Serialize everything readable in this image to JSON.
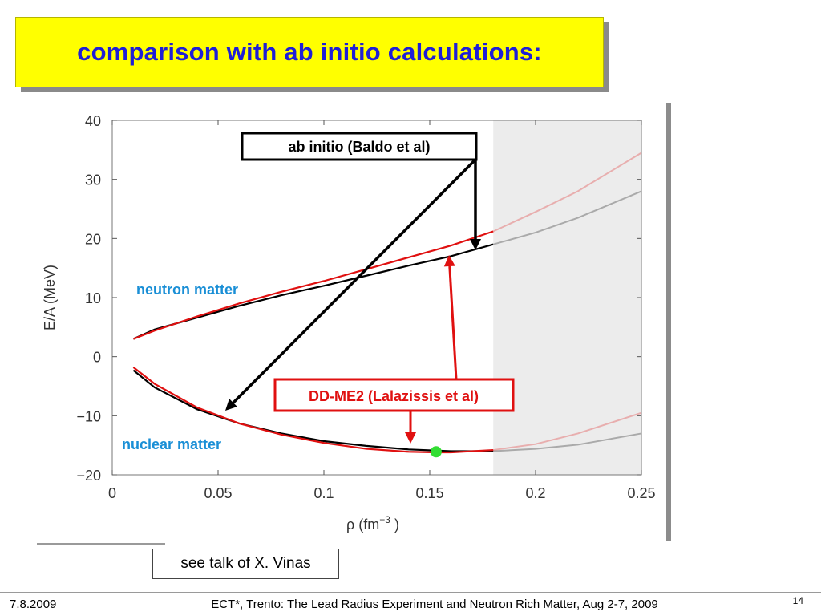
{
  "slide": {
    "title": "comparison with ab initio calculations:",
    "talk_note": "see talk of X. Vinas",
    "footer_date": "7.8.2009",
    "footer_text": "ECT*, Trento: The Lead Radius Experiment and Neutron Rich Matter, Aug 2-7, 2009",
    "page_number": "14"
  },
  "chart_data": {
    "type": "line",
    "xlabel_base": "ρ (fm",
    "xlabel_exp": "−3",
    "xlabel_close": " )",
    "ylabel": "E/A (MeV)",
    "xlim": [
      0,
      0.25
    ],
    "ylim": [
      -20,
      40
    ],
    "x_ticks": [
      0,
      0.05,
      0.1,
      0.15,
      0.2,
      0.25
    ],
    "x_tick_labels": [
      "0",
      "0.05",
      "0.1",
      "0.15",
      "0.2",
      "0.25"
    ],
    "y_ticks": [
      -20,
      -10,
      0,
      10,
      20,
      30,
      40
    ],
    "y_tick_labels": [
      "−20",
      "−10",
      "0",
      "10",
      "20",
      "30",
      "40"
    ],
    "shaded_region_x": [
      0.18,
      0.25
    ],
    "fade_after_x": 0.18,
    "colors": {
      "ab_initio": "#000000",
      "ddme2": "#e01010",
      "dot": "#33dd33",
      "shade": "#ececec",
      "label_blue": "#1a8fd6"
    },
    "series": [
      {
        "key": "ab_initio_neutron",
        "x": [
          0.01,
          0.02,
          0.04,
          0.06,
          0.08,
          0.1,
          0.12,
          0.14,
          0.16,
          0.18,
          0.2,
          0.22,
          0.25
        ],
        "y": [
          3.0,
          4.6,
          6.6,
          8.6,
          10.4,
          12.0,
          13.7,
          15.4,
          17.0,
          19.0,
          21.0,
          23.5,
          28.0
        ]
      },
      {
        "key": "ddme2_neutron",
        "x": [
          0.01,
          0.02,
          0.04,
          0.06,
          0.08,
          0.1,
          0.12,
          0.14,
          0.16,
          0.18,
          0.2,
          0.22,
          0.25
        ],
        "y": [
          3.0,
          4.4,
          6.8,
          9.0,
          11.0,
          12.8,
          14.8,
          16.8,
          18.8,
          21.2,
          24.5,
          28.0,
          34.5
        ]
      },
      {
        "key": "ab_initio_nuclear",
        "x": [
          0.01,
          0.02,
          0.04,
          0.06,
          0.08,
          0.1,
          0.12,
          0.14,
          0.16,
          0.18,
          0.2,
          0.22,
          0.25
        ],
        "y": [
          -2.3,
          -5.2,
          -8.9,
          -11.3,
          -13.0,
          -14.3,
          -15.1,
          -15.7,
          -16.0,
          -16.0,
          -15.6,
          -14.9,
          -13.0
        ]
      },
      {
        "key": "ddme2_nuclear",
        "x": [
          0.01,
          0.02,
          0.04,
          0.06,
          0.08,
          0.1,
          0.12,
          0.14,
          0.153,
          0.16,
          0.18,
          0.2,
          0.22,
          0.25
        ],
        "y": [
          -1.8,
          -4.6,
          -8.6,
          -11.3,
          -13.2,
          -14.6,
          -15.6,
          -16.1,
          -16.2,
          -16.2,
          -15.8,
          -14.8,
          -13.0,
          -9.5
        ]
      }
    ],
    "saturation_point": {
      "x": 0.153,
      "y": -16.1
    },
    "annotations": {
      "neutron_label": "neutron matter",
      "nuclear_label": "nuclear matter",
      "ab_initio_label": "ab initio (Baldo et al)",
      "ddme2_label": "DD-ME2 (Lalazissis et al)"
    }
  }
}
